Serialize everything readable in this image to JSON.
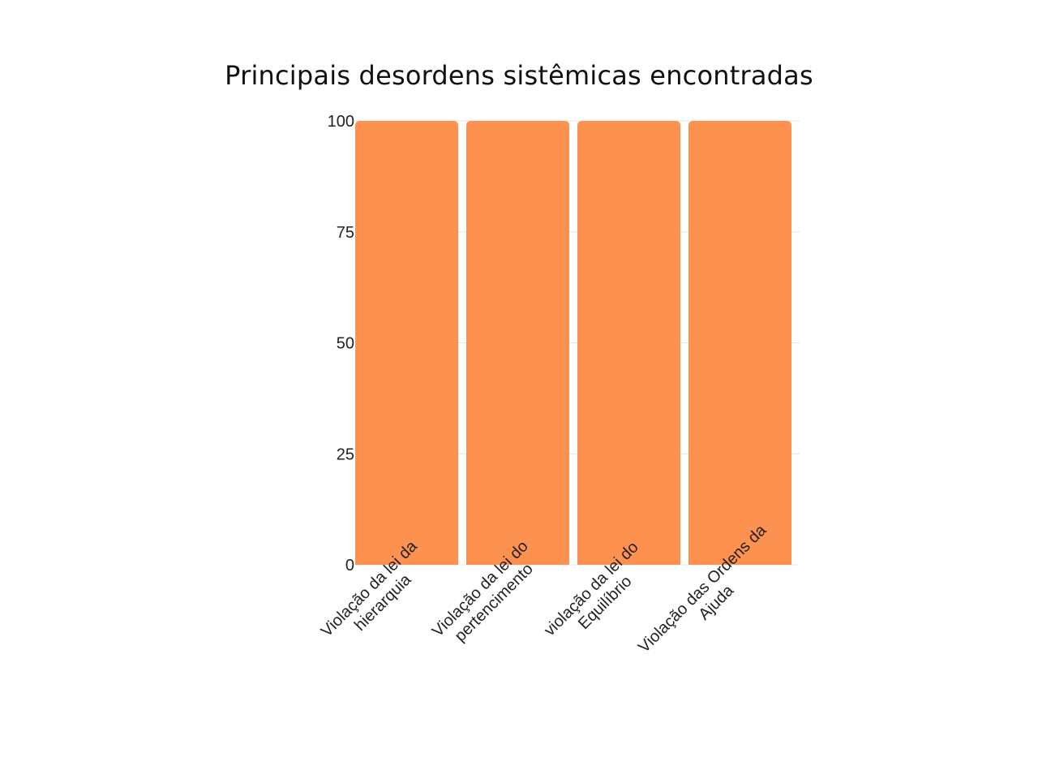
{
  "chart_data": {
    "type": "bar",
    "title": "Principais desordens sistêmicas encontradas",
    "categories": [
      [
        "Violação da lei da",
        "hierarquia"
      ],
      [
        "Violação da lei do",
        "pertencimento"
      ],
      [
        "violação da lei do",
        "Equilíbrio"
      ],
      [
        "Violação das Ordens da",
        "Ajuda"
      ]
    ],
    "values": [
      100,
      100,
      100,
      100
    ],
    "ylim": [
      0,
      100
    ],
    "yticks": [
      "0",
      "25",
      "50",
      "75",
      "100"
    ],
    "xlabel": "",
    "ylabel": "",
    "grid": true,
    "bar_color": "#fd914f",
    "grid_color": "#e6e6e6"
  }
}
